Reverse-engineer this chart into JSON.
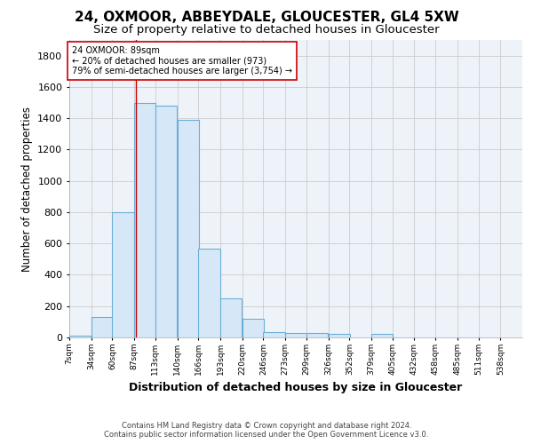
{
  "title1": "24, OXMOOR, ABBEYDALE, GLOUCESTER, GL4 5XW",
  "title2": "Size of property relative to detached houses in Gloucester",
  "xlabel": "Distribution of detached houses by size in Gloucester",
  "ylabel": "Number of detached properties",
  "footnote1": "Contains HM Land Registry data © Crown copyright and database right 2024.",
  "footnote2": "Contains public sector information licensed under the Open Government Licence v3.0.",
  "bins": [
    7,
    34,
    60,
    87,
    113,
    140,
    166,
    193,
    220,
    246,
    273,
    299,
    326,
    352,
    379,
    405,
    432,
    458,
    485,
    511,
    538
  ],
  "values": [
    10,
    130,
    800,
    1500,
    1480,
    1390,
    570,
    250,
    120,
    35,
    30,
    30,
    20,
    0,
    20,
    0,
    0,
    0,
    0,
    0
  ],
  "bar_color": "#d6e8f7",
  "bar_edge_color": "#6aaed6",
  "vline_x": 89,
  "vline_color": "#cc0000",
  "annotation_text": "24 OXMOOR: 89sqm\n← 20% of detached houses are smaller (973)\n79% of semi-detached houses are larger (3,754) →",
  "annotation_box_color": "#cc0000",
  "ylim": [
    0,
    1900
  ],
  "yticks": [
    0,
    200,
    400,
    600,
    800,
    1000,
    1200,
    1400,
    1600,
    1800
  ],
  "grid_color": "#cccccc",
  "bg_color": "#eef3fa",
  "title1_fontsize": 11,
  "title2_fontsize": 9.5,
  "xlabel_fontsize": 9,
  "ylabel_fontsize": 8.5,
  "tick_fontsize": 6.5,
  "tick_labels": [
    "7sqm",
    "34sqm",
    "60sqm",
    "87sqm",
    "113sqm",
    "140sqm",
    "166sqm",
    "193sqm",
    "220sqm",
    "246sqm",
    "273sqm",
    "299sqm",
    "326sqm",
    "352sqm",
    "379sqm",
    "405sqm",
    "432sqm",
    "458sqm",
    "485sqm",
    "511sqm",
    "538sqm"
  ]
}
